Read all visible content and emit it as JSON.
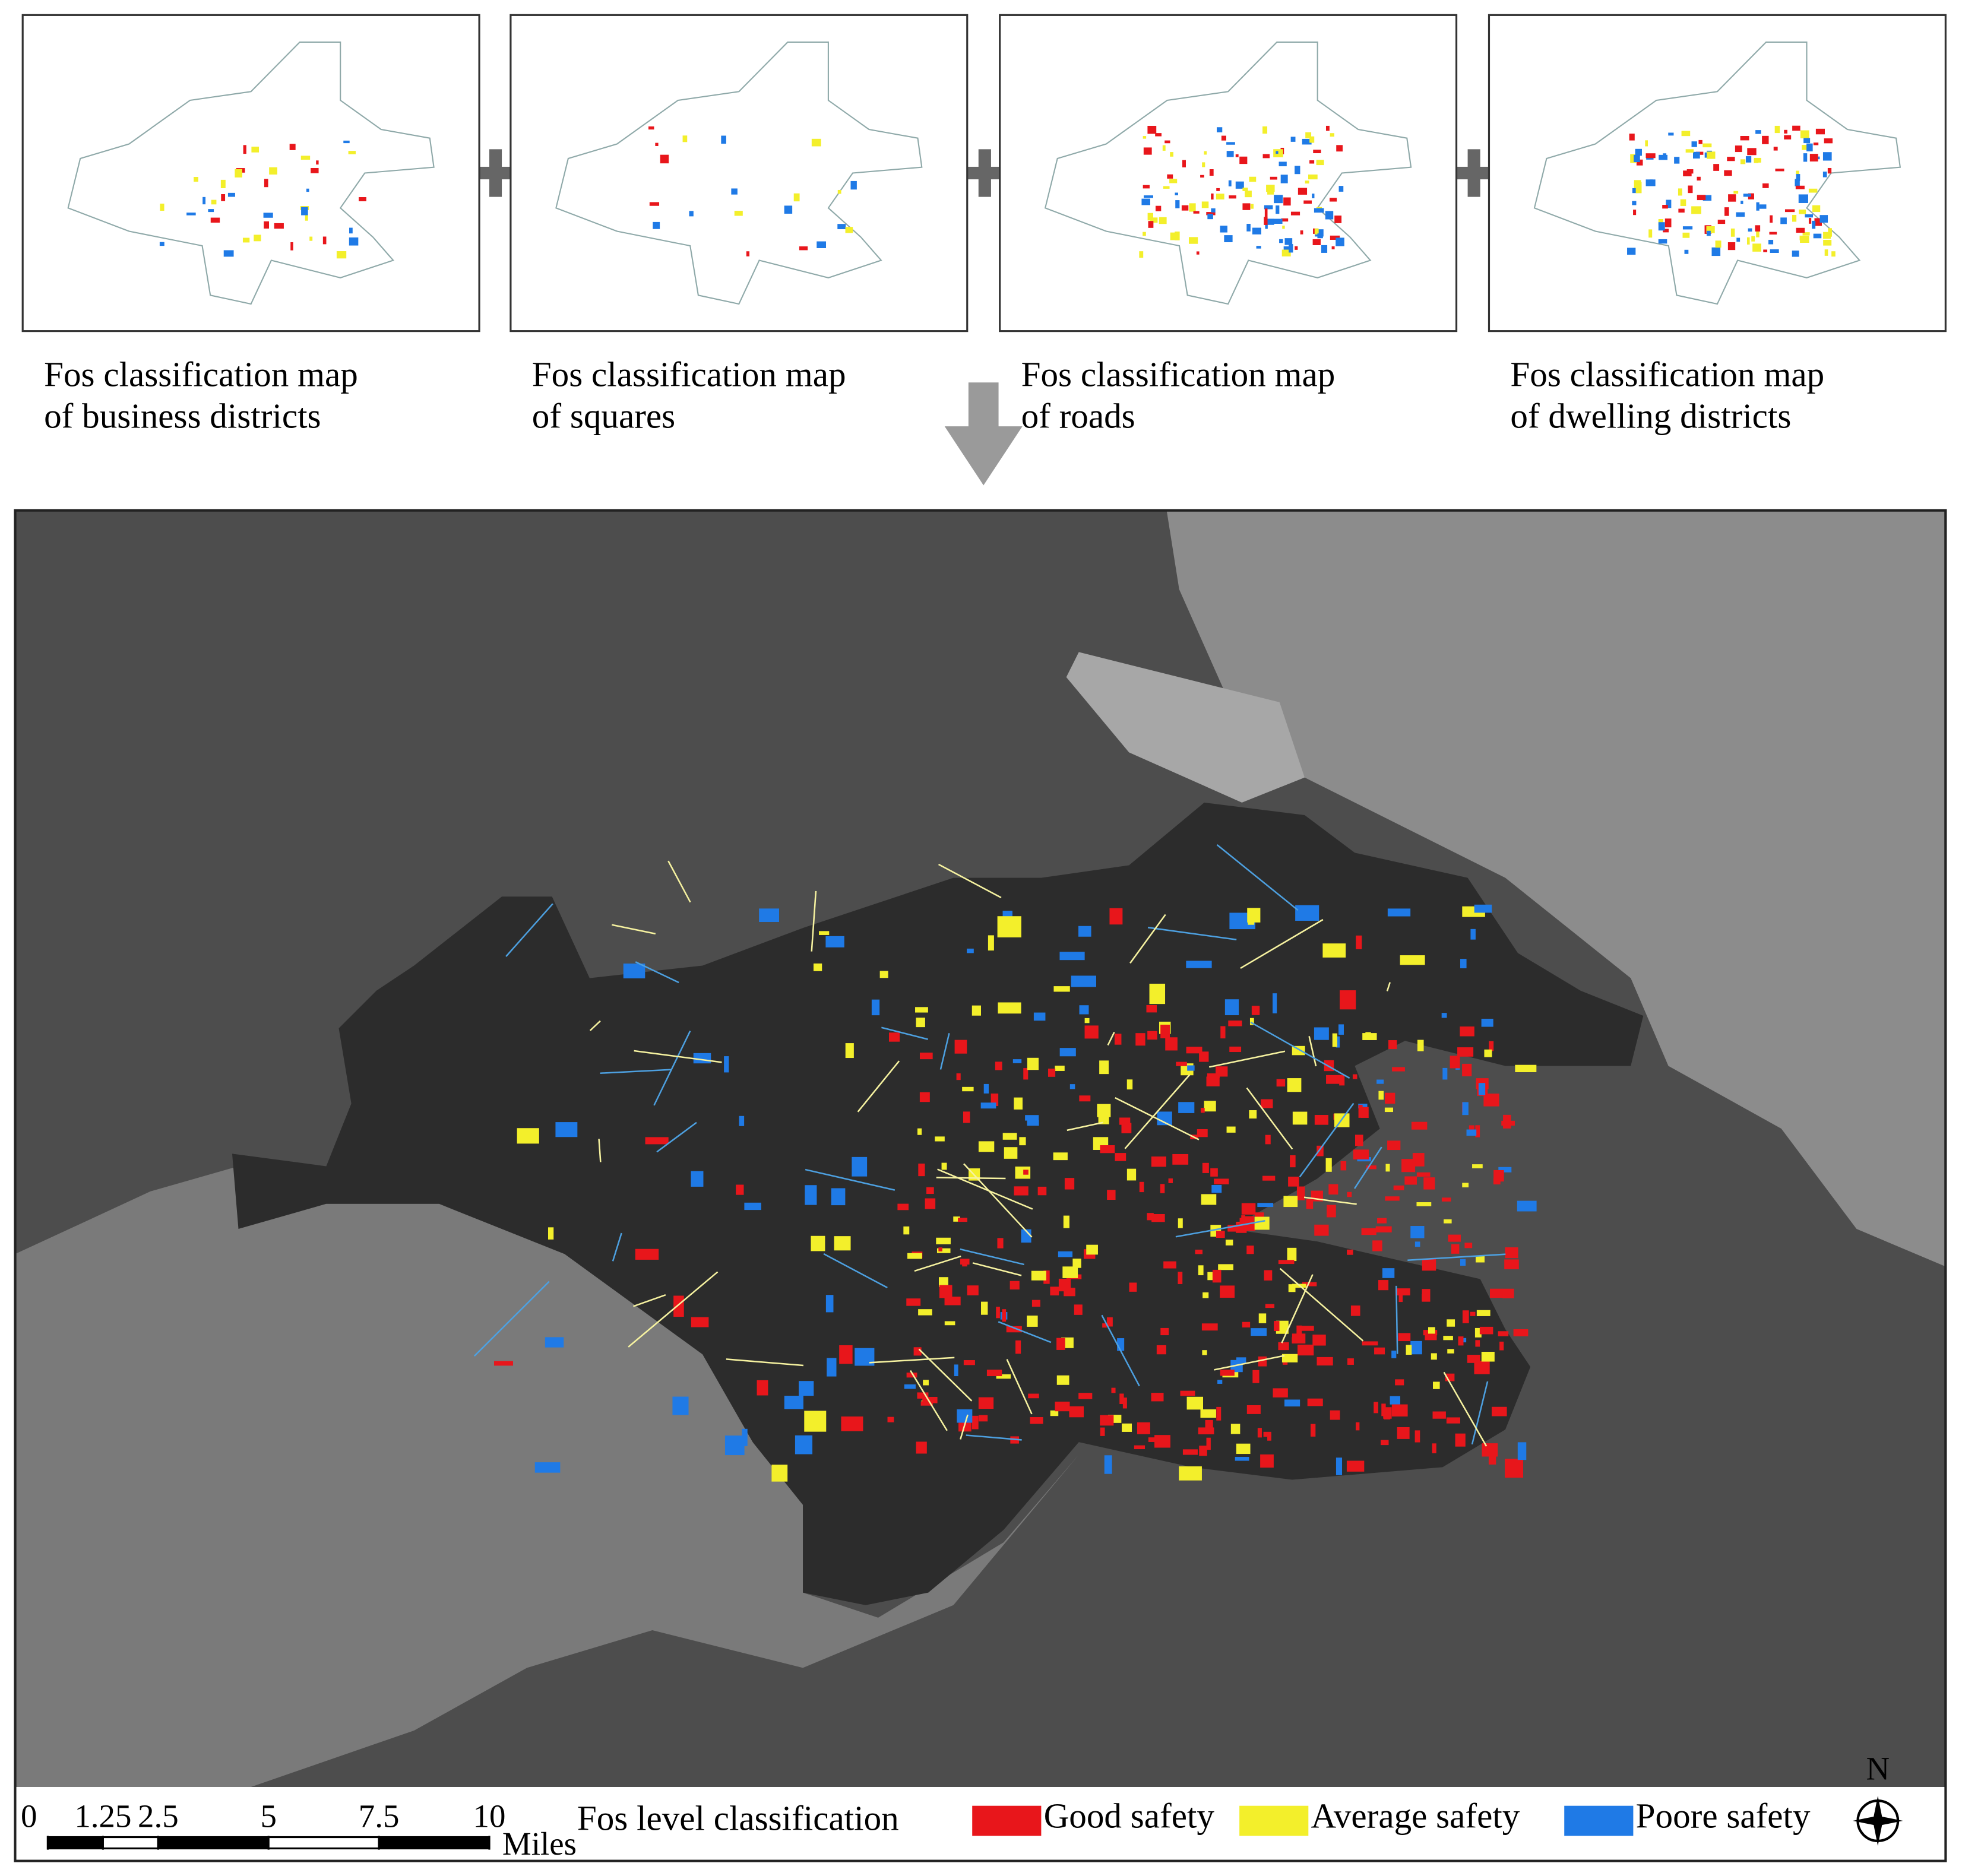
{
  "panels": [
    {
      "caption_line1": "Fos classification map",
      "caption_line2": "of business districts"
    },
    {
      "caption_line1": "Fos classification map",
      "caption_line2": "of squares"
    },
    {
      "caption_line1": "Fos classification map",
      "caption_line2": "of roads"
    },
    {
      "caption_line1": "Fos classification map",
      "caption_line2": "of dwelling districts"
    }
  ],
  "legend": {
    "title": "Fos level classification",
    "items": [
      {
        "label": "Good safety",
        "color": "#e8161b"
      },
      {
        "label": "Average safety",
        "color": "#f3ef2b"
      },
      {
        "label": "Poore safety",
        "color": "#1f7ae6"
      }
    ]
  },
  "scale_bar": {
    "ticks": [
      0,
      1.25,
      2.5,
      5,
      7.5,
      10
    ],
    "unit": "Miles"
  },
  "north_label": "N"
}
